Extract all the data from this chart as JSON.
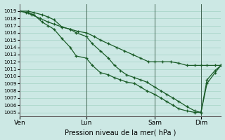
{
  "xlabel": "Pression niveau de la mer( hPa )",
  "bg_color": "#cce8e4",
  "grid_color": "#99ccbb",
  "line_color": "#1a5c28",
  "ylim": [
    1004.5,
    1020.0
  ],
  "yticks": [
    1005,
    1006,
    1007,
    1008,
    1009,
    1010,
    1011,
    1012,
    1013,
    1014,
    1015,
    1016,
    1017,
    1018,
    1019
  ],
  "xtick_labels": [
    "Ven",
    "Lun",
    "Sam",
    "Dim"
  ],
  "xtick_positions": [
    0.0,
    0.33,
    0.67,
    0.9
  ],
  "vline_positions": [
    0.0,
    0.33,
    0.67,
    0.9
  ],
  "series1_x": [
    0.0,
    0.03,
    0.06,
    0.1,
    0.14,
    0.17,
    0.21,
    0.25,
    0.29,
    0.33,
    0.37,
    0.4,
    0.44,
    0.48,
    0.52,
    0.56,
    0.6,
    0.64,
    0.67,
    0.71,
    0.75,
    0.79,
    0.83,
    0.87,
    0.9,
    0.93,
    0.97,
    1.0
  ],
  "series1_y": [
    1019.0,
    1018.8,
    1018.5,
    1018.0,
    1017.5,
    1017.2,
    1016.8,
    1016.5,
    1016.2,
    1016.0,
    1015.5,
    1015.0,
    1014.5,
    1014.0,
    1013.5,
    1013.0,
    1012.5,
    1012.0,
    1012.0,
    1012.0,
    1012.0,
    1011.8,
    1011.5,
    1011.5,
    1011.5,
    1011.5,
    1011.5,
    1011.5
  ],
  "series2_x": [
    0.0,
    0.04,
    0.07,
    0.11,
    0.14,
    0.17,
    0.21,
    0.25,
    0.28,
    0.33,
    0.36,
    0.4,
    0.44,
    0.47,
    0.5,
    0.53,
    0.57,
    0.6,
    0.63,
    0.67,
    0.7,
    0.73,
    0.76,
    0.79,
    0.83,
    0.87,
    0.9,
    0.93,
    0.97,
    1.0
  ],
  "series2_y": [
    1019.0,
    1018.8,
    1018.5,
    1017.5,
    1017.0,
    1016.5,
    1015.2,
    1014.0,
    1012.8,
    1012.5,
    1011.5,
    1010.5,
    1010.2,
    1009.8,
    1009.5,
    1009.2,
    1009.0,
    1008.5,
    1008.0,
    1007.5,
    1007.0,
    1006.5,
    1006.0,
    1005.5,
    1005.2,
    1005.0,
    1005.0,
    1009.0,
    1010.5,
    1011.5
  ],
  "series3_x": [
    0.0,
    0.04,
    0.07,
    0.11,
    0.14,
    0.17,
    0.21,
    0.25,
    0.28,
    0.33,
    0.36,
    0.4,
    0.44,
    0.47,
    0.5,
    0.53,
    0.57,
    0.6,
    0.63,
    0.67,
    0.7,
    0.73,
    0.76,
    0.79,
    0.83,
    0.87,
    0.9,
    0.93,
    0.97,
    1.0
  ],
  "series3_y": [
    1019.0,
    1019.0,
    1018.8,
    1018.5,
    1018.2,
    1017.8,
    1016.8,
    1016.5,
    1016.0,
    1015.5,
    1014.5,
    1013.5,
    1012.5,
    1011.5,
    1010.8,
    1010.2,
    1009.8,
    1009.5,
    1009.2,
    1008.5,
    1008.0,
    1007.5,
    1007.0,
    1006.5,
    1005.8,
    1005.2,
    1005.0,
    1009.5,
    1010.8,
    1011.5
  ]
}
